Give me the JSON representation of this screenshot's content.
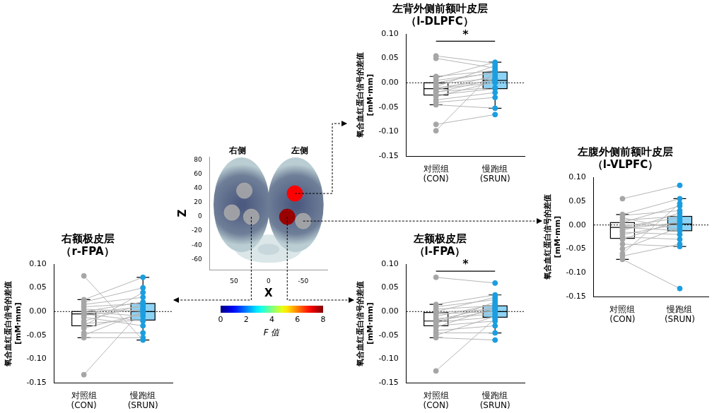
{
  "chart_data": [
    {
      "type": "box",
      "title": [
        "左背外侧前额叶皮层",
        "（l-DLPFC）"
      ],
      "y_label": [
        "氧合血红蛋白信号的差值",
        "[mM·mm]"
      ],
      "categories": [
        [
          "对照组",
          "(CON)"
        ],
        [
          "慢跑组",
          "(SRUN)"
        ]
      ],
      "point_colors": [
        "#a6a6a6",
        "#1a9ee0"
      ],
      "box_colors": [
        "#ffffff",
        "#8dd3f5"
      ],
      "line_color": "#b5b5b5",
      "boxes": [
        {
          "min": -0.045,
          "q1": -0.025,
          "median": -0.012,
          "q3": 0.0,
          "max": 0.013
        },
        {
          "min": -0.052,
          "q1": -0.012,
          "median": 0.005,
          "q3": 0.022,
          "max": 0.042
        }
      ],
      "pairs": [
        [
          0.055,
          0.04
        ],
        [
          0.05,
          0.03
        ],
        [
          0.013,
          0.025
        ],
        [
          0.01,
          0.042
        ],
        [
          0.005,
          0.02
        ],
        [
          0.0,
          0.022
        ],
        [
          -0.003,
          0.01
        ],
        [
          -0.008,
          0.035
        ],
        [
          -0.01,
          0.005
        ],
        [
          -0.012,
          0.0
        ],
        [
          -0.015,
          0.015
        ],
        [
          -0.018,
          -0.01
        ],
        [
          -0.02,
          0.008
        ],
        [
          -0.025,
          -0.012
        ],
        [
          -0.028,
          0.002
        ],
        [
          -0.035,
          -0.02
        ],
        [
          -0.045,
          -0.052
        ],
        [
          -0.04,
          -0.03
        ],
        [
          -0.085,
          -0.065
        ],
        [
          -0.098,
          0.025
        ]
      ],
      "ylim": [
        -0.15,
        0.1
      ],
      "yticks": [
        {
          "value": 0.1,
          "label": "0.10"
        },
        0.05,
        {
          "value": 0,
          "label": "0.00"
        },
        -0.05,
        {
          "value": -0.1,
          "label": "-0.10"
        },
        -0.15
      ],
      "reference_line": {
        "y": 0,
        "line_style": "dotted"
      },
      "significance": {
        "label": "*",
        "y": 0.085
      }
    },
    {
      "type": "box",
      "title": [
        "左腹外侧前额叶皮层",
        "（l-VLPFC）"
      ],
      "y_label": [
        "氧合血红蛋白信号的差值",
        "[mM·mm]"
      ],
      "categories": [
        [
          "对照组",
          "(CON)"
        ],
        [
          "慢跑组",
          "(SRUN)"
        ]
      ],
      "point_colors": [
        "#a6a6a6",
        "#1a9ee0"
      ],
      "box_colors": [
        "#ffffff",
        "#8dd3f5"
      ],
      "line_color": "#b5b5b5",
      "boxes": [
        {
          "min": -0.072,
          "q1": -0.028,
          "median": -0.005,
          "q3": 0.005,
          "max": 0.022
        },
        {
          "min": -0.045,
          "q1": -0.012,
          "median": 0.002,
          "q3": 0.018,
          "max": 0.055
        }
      ],
      "pairs": [
        [
          0.055,
          0.083
        ],
        [
          0.022,
          0.055
        ],
        [
          0.02,
          0.03
        ],
        [
          0.015,
          -0.01
        ],
        [
          0.01,
          0.018
        ],
        [
          0.005,
          0.04
        ],
        [
          0.0,
          0.0
        ],
        [
          -0.003,
          0.015
        ],
        [
          -0.005,
          -0.012
        ],
        [
          -0.008,
          0.005
        ],
        [
          -0.012,
          0.025
        ],
        [
          -0.015,
          -0.02
        ],
        [
          -0.02,
          0.002
        ],
        [
          -0.025,
          -0.03
        ],
        [
          -0.03,
          0.01
        ],
        [
          -0.04,
          -0.045
        ],
        [
          -0.05,
          -0.005
        ],
        [
          -0.06,
          0.045
        ],
        [
          -0.065,
          -0.04
        ],
        [
          -0.072,
          -0.133
        ]
      ],
      "ylim": [
        -0.15,
        0.1
      ],
      "yticks": [
        {
          "value": 0.1,
          "label": "0.10"
        },
        0.05,
        {
          "value": 0,
          "label": "0.00"
        },
        -0.05,
        {
          "value": -0.1,
          "label": "-0.10"
        },
        -0.15
      ],
      "reference_line": {
        "y": 0,
        "line_style": "dotted"
      }
    },
    {
      "type": "box",
      "title": [
        "右额极皮层",
        "（r-FPA）"
      ],
      "y_label": [
        "氧合血红蛋白信号的差值",
        "[mM·mm]"
      ],
      "categories": [
        [
          "对照组",
          "(CON)"
        ],
        [
          "慢跑组",
          "(SRUN)"
        ]
      ],
      "point_colors": [
        "#a6a6a6",
        "#1a9ee0"
      ],
      "box_colors": [
        "#ffffff",
        "#8dd3f5"
      ],
      "line_color": "#b5b5b5",
      "boxes": [
        {
          "min": -0.055,
          "q1": -0.03,
          "median": -0.005,
          "q3": 0.0,
          "max": 0.025
        },
        {
          "min": -0.06,
          "q1": -0.018,
          "median": 0.0,
          "q3": 0.017,
          "max": 0.072
        }
      ],
      "pairs": [
        [
          0.075,
          -0.06
        ],
        [
          0.025,
          0.072
        ],
        [
          0.02,
          0.05
        ],
        [
          0.015,
          0.03
        ],
        [
          0.01,
          0.017
        ],
        [
          0.005,
          0.0
        ],
        [
          0.0,
          0.02
        ],
        [
          0.0,
          -0.01
        ],
        [
          -0.003,
          0.01
        ],
        [
          -0.005,
          -0.02
        ],
        [
          -0.008,
          0.005
        ],
        [
          -0.012,
          -0.03
        ],
        [
          -0.02,
          0.015
        ],
        [
          -0.025,
          -0.018
        ],
        [
          -0.03,
          0.04
        ],
        [
          -0.035,
          -0.005
        ],
        [
          -0.045,
          -0.045
        ],
        [
          -0.05,
          0.0
        ],
        [
          -0.055,
          -0.055
        ],
        [
          -0.133,
          0.005
        ]
      ],
      "ylim": [
        -0.15,
        0.1
      ],
      "yticks": [
        {
          "value": 0.1,
          "label": "0.10"
        },
        0.05,
        {
          "value": 0,
          "label": "0.00"
        },
        -0.05,
        {
          "value": -0.1,
          "label": "-0.10"
        },
        -0.15
      ],
      "reference_line": {
        "y": 0,
        "line_style": "dotted"
      }
    },
    {
      "type": "box",
      "title": [
        "左额极皮层",
        "（l-FPA）"
      ],
      "y_label": [
        "氧合血红蛋白信号的差值",
        "[mM·mm]"
      ],
      "categories": [
        [
          "对照组",
          "(CON)"
        ],
        [
          "慢跑组",
          "(SRUN)"
        ]
      ],
      "point_colors": [
        "#a6a6a6",
        "#1a9ee0"
      ],
      "box_colors": [
        "#ffffff",
        "#8dd3f5"
      ],
      "line_color": "#b5b5b5",
      "boxes": [
        {
          "min": -0.055,
          "q1": -0.03,
          "median": -0.02,
          "q3": -0.002,
          "max": 0.015
        },
        {
          "min": -0.045,
          "q1": -0.012,
          "median": 0.0,
          "q3": 0.012,
          "max": 0.035
        }
      ],
      "pairs": [
        [
          0.072,
          0.06
        ],
        [
          0.015,
          0.035
        ],
        [
          0.01,
          0.025
        ],
        [
          0.005,
          0.012
        ],
        [
          0.0,
          0.03
        ],
        [
          -0.002,
          0.005
        ],
        [
          -0.005,
          0.0
        ],
        [
          -0.01,
          0.015
        ],
        [
          -0.015,
          -0.005
        ],
        [
          -0.018,
          0.01
        ],
        [
          -0.02,
          0.002
        ],
        [
          -0.022,
          -0.012
        ],
        [
          -0.025,
          0.02
        ],
        [
          -0.03,
          -0.02
        ],
        [
          -0.033,
          0.008
        ],
        [
          -0.04,
          -0.03
        ],
        [
          -0.045,
          -0.045
        ],
        [
          -0.05,
          -0.01
        ],
        [
          -0.055,
          -0.06
        ],
        [
          -0.125,
          -0.015
        ]
      ],
      "ylim": [
        -0.15,
        0.1
      ],
      "yticks": [
        {
          "value": 0.1,
          "label": "0.10"
        },
        0.05,
        {
          "value": 0,
          "label": "0.00"
        },
        -0.05,
        {
          "value": -0.1,
          "label": "-0.10"
        },
        -0.15
      ],
      "reference_line": {
        "y": 0,
        "line_style": "dotted"
      },
      "significance": {
        "label": "*",
        "y": 0.085
      }
    },
    {
      "type": "scatter",
      "hemisphere_labels": [
        "右侧",
        "左侧"
      ],
      "x_label": "X",
      "y_label": "Z",
      "xlim": [
        85,
        -85
      ],
      "xticks": [
        50,
        0,
        -50
      ],
      "ylim": [
        -75,
        85
      ],
      "yticks": [
        80,
        60,
        40,
        20,
        0,
        -20,
        -40,
        -60
      ],
      "points": [
        {
          "x": -38,
          "z": 33,
          "F": 7.0
        },
        {
          "x": -27,
          "z": 0,
          "F": 7.8
        },
        {
          "x": -50,
          "z": -6,
          "F": null
        },
        {
          "x": 25,
          "z": 0,
          "F": null
        },
        {
          "x": 35,
          "z": 37,
          "F": null
        },
        {
          "x": 53,
          "z": 6,
          "F": null
        }
      ],
      "colorbar": {
        "range": [
          0,
          8
        ],
        "ticks": [
          0,
          2,
          4,
          6,
          8
        ],
        "label": "F 值"
      }
    }
  ]
}
